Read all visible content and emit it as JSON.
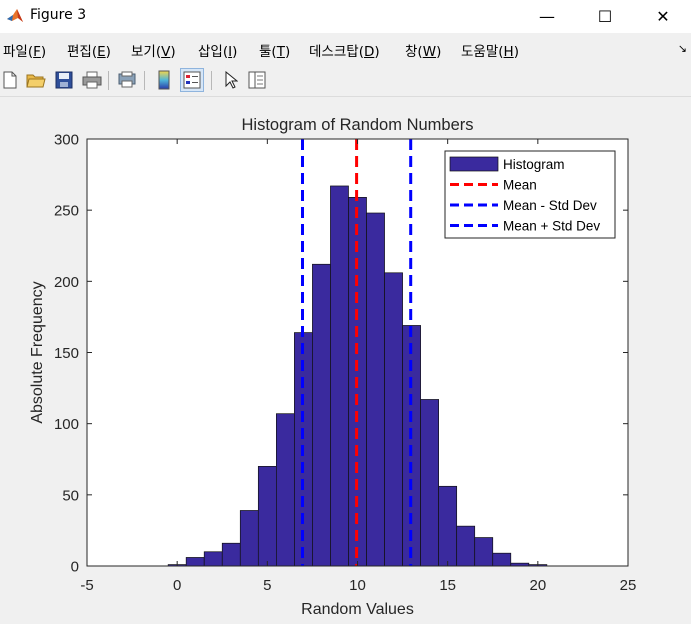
{
  "window": {
    "title": "Figure 3",
    "controls": {
      "minimize": "—",
      "maximize": "☐",
      "close": "✕"
    }
  },
  "menu": {
    "items": [
      {
        "text": "파일",
        "key": "F"
      },
      {
        "text": "편집",
        "key": "E"
      },
      {
        "text": "보기",
        "key": "V"
      },
      {
        "text": "삽입",
        "key": "I"
      },
      {
        "text": "툴",
        "key": "T"
      },
      {
        "text": "데스크탑",
        "key": "D"
      },
      {
        "text": "창",
        "key": "W"
      },
      {
        "text": "도움말",
        "key": "H"
      }
    ]
  },
  "toolbar": {
    "buttons": [
      {
        "icon": "new-figure-icon"
      },
      {
        "icon": "open-file-icon"
      },
      {
        "icon": "save-icon"
      },
      {
        "icon": "print-icon"
      },
      {
        "icon": "print-preview-icon"
      },
      {
        "icon": "insert-colorbar-icon"
      },
      {
        "icon": "insert-legend-icon"
      },
      {
        "icon": "edit-plot-arrow-icon"
      },
      {
        "icon": "property-inspector-icon"
      }
    ]
  },
  "chart_data": {
    "type": "bar",
    "title": "Histogram of Random Numbers",
    "xlabel": "Random Values",
    "ylabel": "Absolute Frequency",
    "xlim": [
      -5,
      25
    ],
    "ylim": [
      0,
      300
    ],
    "xticks": [
      -5,
      0,
      5,
      10,
      15,
      20,
      25
    ],
    "yticks": [
      0,
      50,
      100,
      150,
      200,
      250,
      300
    ],
    "grid": false,
    "legend_position": "top-right",
    "bar_color": "#3a2a9e",
    "bin_width": 1.0,
    "bins": [
      {
        "left": -0.5,
        "value": 1
      },
      {
        "left": 0.5,
        "value": 6
      },
      {
        "left": 1.5,
        "value": 10
      },
      {
        "left": 2.5,
        "value": 16
      },
      {
        "left": 3.5,
        "value": 39
      },
      {
        "left": 4.5,
        "value": 70
      },
      {
        "left": 5.5,
        "value": 107
      },
      {
        "left": 6.5,
        "value": 164
      },
      {
        "left": 7.5,
        "value": 212
      },
      {
        "left": 8.5,
        "value": 267
      },
      {
        "left": 9.5,
        "value": 259
      },
      {
        "left": 10.5,
        "value": 248
      },
      {
        "left": 11.5,
        "value": 206
      },
      {
        "left": 12.5,
        "value": 169
      },
      {
        "left": 13.5,
        "value": 117
      },
      {
        "left": 14.5,
        "value": 56
      },
      {
        "left": 15.5,
        "value": 28
      },
      {
        "left": 16.5,
        "value": 20
      },
      {
        "left": 17.5,
        "value": 9
      },
      {
        "left": 18.5,
        "value": 2
      },
      {
        "left": 19.5,
        "value": 1
      }
    ],
    "reference_lines": [
      {
        "name": "Mean",
        "x": 9.95,
        "color": "#ff0000"
      },
      {
        "name": "Mean - Std Dev",
        "x": 6.95,
        "color": "#0000ff"
      },
      {
        "name": "Mean + Std Dev",
        "x": 12.95,
        "color": "#0000ff"
      }
    ],
    "legend": [
      {
        "label": "Histogram",
        "kind": "patch",
        "color": "#3a2a9e"
      },
      {
        "label": "Mean",
        "kind": "dash",
        "color": "#ff0000"
      },
      {
        "label": "Mean - Std Dev",
        "kind": "dash",
        "color": "#0000ff"
      },
      {
        "label": "Mean + Std Dev",
        "kind": "dash",
        "color": "#0000ff"
      }
    ]
  }
}
